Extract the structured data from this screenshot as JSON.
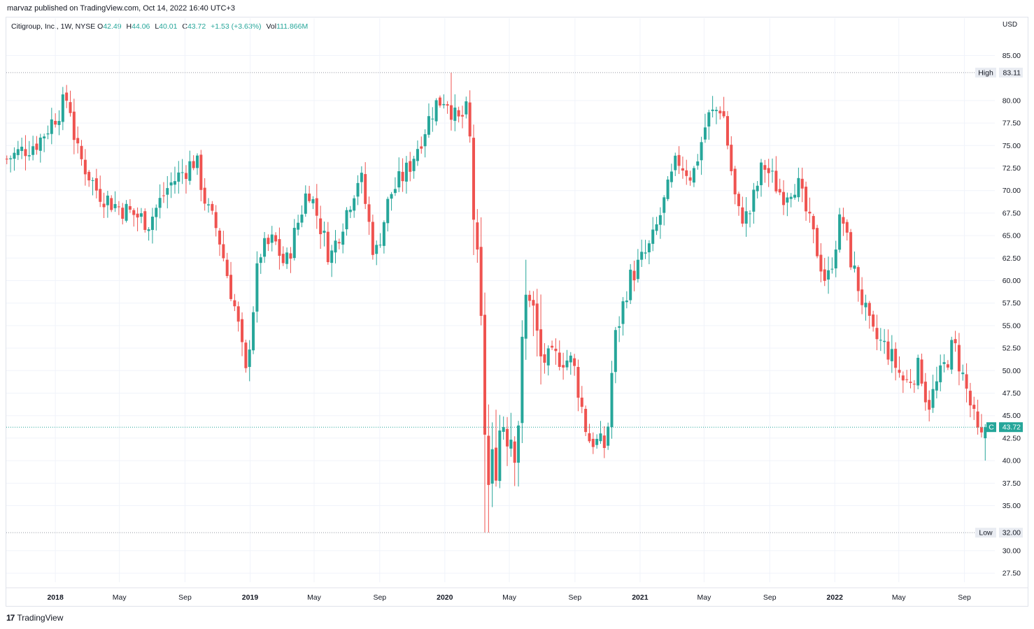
{
  "header": {
    "publisher_line": "marvaz published on TradingView.com, Oct 14, 2022 16:40 UTC+3",
    "symbol_name": "Citigroup, Inc., 1W, NYSE",
    "open_label": "O",
    "open_value": "42.49",
    "high_label": "H",
    "high_value": "44.06",
    "low_label": "L",
    "low_value": "40.01",
    "close_label": "C",
    "close_value": "43.72",
    "change": "+1.53 (+3.63%)",
    "vol_label": "Vol",
    "vol_value": "111.866M",
    "currency": "USD"
  },
  "footer": {
    "brand": "TradingView",
    "logo_glyph": "17"
  },
  "colors": {
    "up": "#26a69a",
    "down": "#ef5350",
    "grid": "#f0f3fa",
    "axis_text": "#131722"
  },
  "chart_data": {
    "type": "candlestick",
    "x_ticks": [
      {
        "label": "2018",
        "date": "2018-01-01",
        "bold": true
      },
      {
        "label": "May",
        "date": "2018-05-01",
        "bold": false
      },
      {
        "label": "Sep",
        "date": "2018-09-01",
        "bold": false
      },
      {
        "label": "2019",
        "date": "2019-01-01",
        "bold": true
      },
      {
        "label": "May",
        "date": "2019-05-01",
        "bold": false
      },
      {
        "label": "Sep",
        "date": "2019-09-01",
        "bold": false
      },
      {
        "label": "2020",
        "date": "2020-01-01",
        "bold": true
      },
      {
        "label": "May",
        "date": "2020-05-01",
        "bold": false
      },
      {
        "label": "Sep",
        "date": "2020-09-01",
        "bold": false
      },
      {
        "label": "2021",
        "date": "2021-01-01",
        "bold": true
      },
      {
        "label": "May",
        "date": "2021-05-01",
        "bold": false
      },
      {
        "label": "Sep",
        "date": "2021-09-01",
        "bold": false
      },
      {
        "label": "2022",
        "date": "2022-01-01",
        "bold": true
      },
      {
        "label": "May",
        "date": "2022-05-01",
        "bold": false
      },
      {
        "label": "Sep",
        "date": "2022-09-01",
        "bold": false
      }
    ],
    "y_ticks": [
      "27.50",
      "30.00",
      "35.00",
      "37.50",
      "40.00",
      "42.50",
      "45.00",
      "47.50",
      "50.00",
      "52.50",
      "55.00",
      "57.50",
      "60.00",
      "62.50",
      "65.00",
      "67.50",
      "70.00",
      "72.50",
      "75.00",
      "77.50",
      "80.00",
      "85.00"
    ],
    "ylim": [
      26.5,
      87.6
    ],
    "high_marker": {
      "label": "High",
      "value": "83.11"
    },
    "low_marker": {
      "label": "Low",
      "value": "32.00"
    },
    "last_marker": {
      "label": "C",
      "value": "43.72"
    },
    "anchors": [
      [
        "2017-10-02",
        73.5
      ],
      [
        "2017-12-01",
        75.5
      ],
      [
        "2018-01-26",
        80.5
      ],
      [
        "2018-02-09",
        74.5
      ],
      [
        "2018-03-20",
        70.0
      ],
      [
        "2018-04-20",
        68.5
      ],
      [
        "2018-06-25",
        66.5
      ],
      [
        "2018-08-01",
        70.5
      ],
      [
        "2018-09-21",
        73.5
      ],
      [
        "2018-10-12",
        68.0
      ],
      [
        "2018-11-01",
        65.5
      ],
      [
        "2018-12-07",
        56.0
      ],
      [
        "2018-12-24",
        49.5
      ],
      [
        "2019-01-18",
        63.0
      ],
      [
        "2019-02-15",
        64.5
      ],
      [
        "2019-03-08",
        61.5
      ],
      [
        "2019-04-20",
        70.5
      ],
      [
        "2019-05-31",
        62.5
      ],
      [
        "2019-07-26",
        72.0
      ],
      [
        "2019-08-23",
        62.5
      ],
      [
        "2019-09-20",
        69.5
      ],
      [
        "2019-10-25",
        72.5
      ],
      [
        "2019-12-13",
        79.5
      ],
      [
        "2020-01-03",
        80.5
      ],
      [
        "2020-01-24",
        77.5
      ],
      [
        "2020-02-14",
        79.0
      ],
      [
        "2020-02-28",
        63.0
      ],
      [
        "2020-03-13",
        50.0
      ],
      [
        "2020-03-20",
        36.0
      ],
      [
        "2020-04-03",
        40.0
      ],
      [
        "2020-04-17",
        45.0
      ],
      [
        "2020-05-15",
        42.5
      ],
      [
        "2020-06-05",
        61.0
      ],
      [
        "2020-06-26",
        51.0
      ],
      [
        "2020-07-31",
        51.5
      ],
      [
        "2020-08-28",
        51.0
      ],
      [
        "2020-09-25",
        42.5
      ],
      [
        "2020-10-30",
        41.5
      ],
      [
        "2020-11-13",
        53.0
      ],
      [
        "2020-12-11",
        60.0
      ],
      [
        "2021-01-22",
        64.0
      ],
      [
        "2021-03-12",
        73.5
      ],
      [
        "2021-04-09",
        71.5
      ],
      [
        "2021-05-07",
        78.0
      ],
      [
        "2021-06-04",
        79.5
      ],
      [
        "2021-07-02",
        67.5
      ],
      [
        "2021-07-23",
        67.0
      ],
      [
        "2021-08-20",
        73.0
      ],
      [
        "2021-09-24",
        69.5
      ],
      [
        "2021-10-22",
        71.0
      ],
      [
        "2021-11-26",
        64.0
      ],
      [
        "2021-12-17",
        59.5
      ],
      [
        "2022-01-14",
        67.5
      ],
      [
        "2022-01-28",
        63.0
      ],
      [
        "2022-03-11",
        54.0
      ],
      [
        "2022-04-08",
        52.5
      ],
      [
        "2022-05-13",
        48.5
      ],
      [
        "2022-06-10",
        50.5
      ],
      [
        "2022-06-24",
        46.0
      ],
      [
        "2022-08-12",
        53.0
      ],
      [
        "2022-09-02",
        48.5
      ],
      [
        "2022-09-30",
        42.0
      ],
      [
        "2022-10-14",
        43.72
      ]
    ]
  }
}
